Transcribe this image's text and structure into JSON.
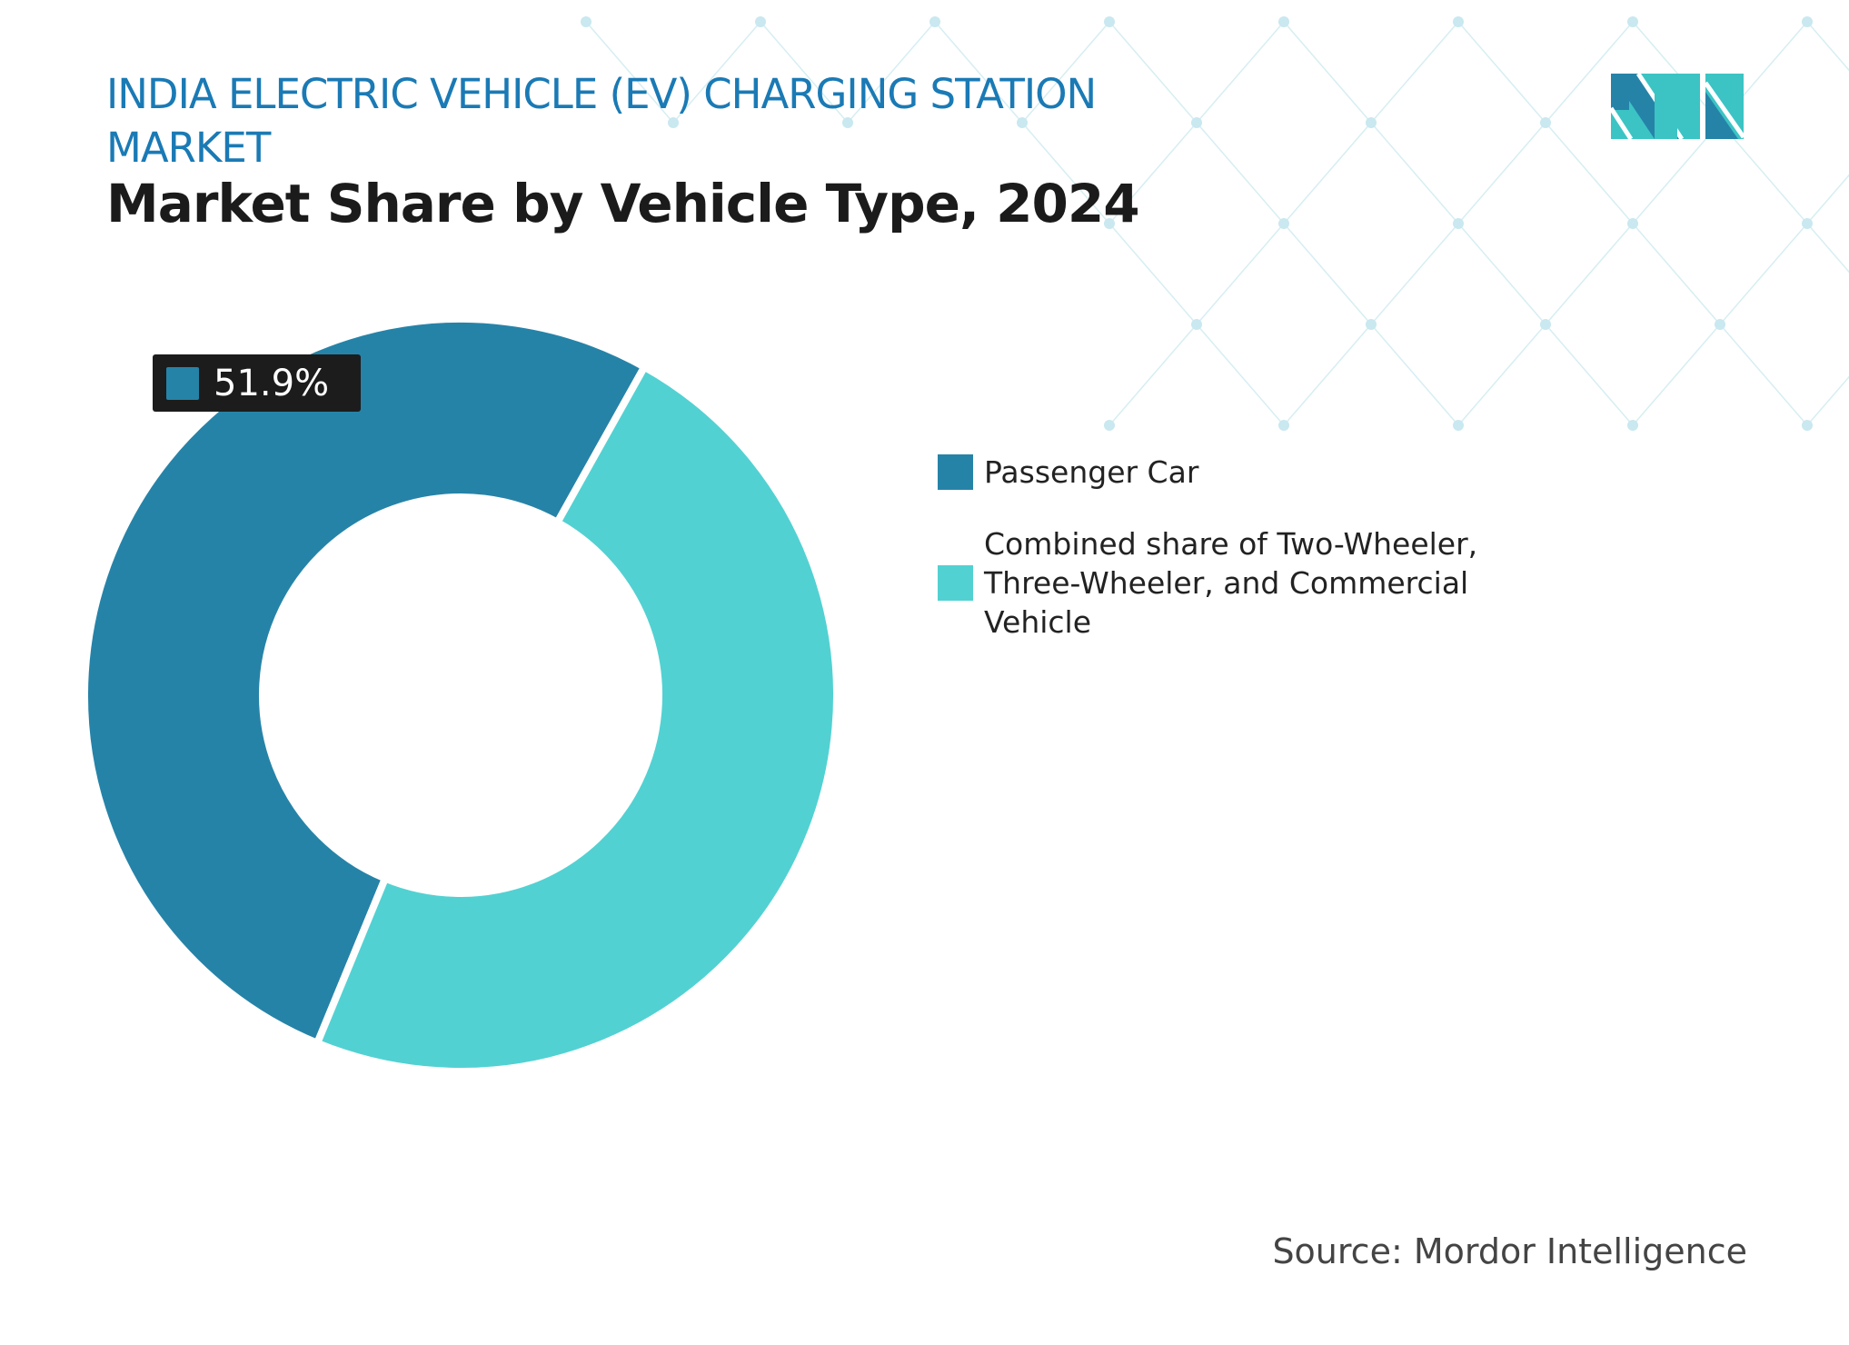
{
  "header": {
    "title": "INDIA ELECTRIC VEHICLE (EV) CHARGING STATION MARKET",
    "subtitle": "Market Share by Vehicle Type, 2024"
  },
  "chart_data": {
    "type": "pie",
    "donut": true,
    "title": "Market Share by Vehicle Type, 2024",
    "categories": [
      "Passenger Car",
      "Combined share of Two-Wheeler, Three-Wheeler, and Commercial Vehicle"
    ],
    "values": [
      51.9,
      48.1
    ],
    "unit": "%",
    "colors": [
      "#2683a8",
      "#52d1d2"
    ],
    "data_labels": [
      {
        "category": "Passenger Car",
        "text": "51.9%"
      }
    ],
    "legend_placement": "right"
  },
  "source": "Source: Mordor Intelligence",
  "logo": {
    "icon": "mordor-intelligence-logo",
    "colors": [
      "#2683a8",
      "#3cc4c4"
    ]
  }
}
